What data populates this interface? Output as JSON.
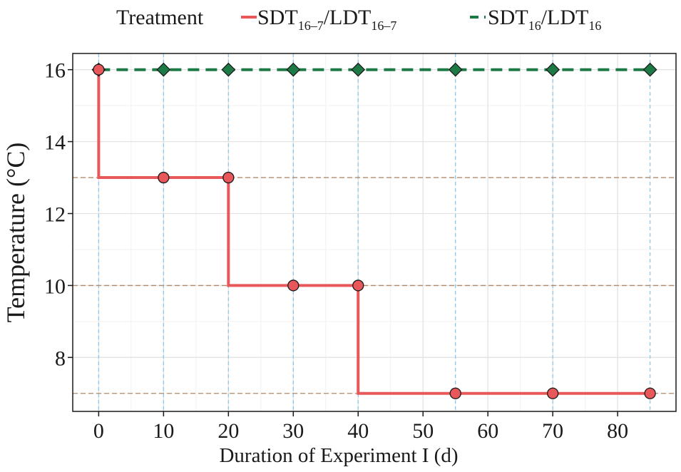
{
  "chart_data": {
    "type": "line",
    "title": "",
    "xlabel": "Duration of Experiment I (d)",
    "ylabel": "Temperature (°C)",
    "xlim": [
      -4,
      89
    ],
    "ylim": [
      6.5,
      16.45
    ],
    "x_ticks": [
      "0",
      "10",
      "20",
      "30",
      "40",
      "50",
      "60",
      "70",
      "80"
    ],
    "y_ticks": [
      "8",
      "10",
      "12",
      "14",
      "16"
    ],
    "legend": {
      "title": "Treatment",
      "position": "top",
      "entries": [
        {
          "main1": "SDT",
          "sub1": "16–7",
          "sep": "/",
          "main2": "LDT",
          "sub2": "16–7"
        },
        {
          "main1": "SDT",
          "sub1": "16",
          "sep": "/",
          "main2": "LDT",
          "sub2": "16"
        }
      ]
    },
    "series": [
      {
        "name": "SDT16–7/LDT16–7",
        "style": "solid step line with circle markers",
        "color": "#e8585a",
        "x": [
          0,
          10,
          20,
          30,
          40,
          55,
          70,
          85
        ],
        "y": [
          16,
          13,
          13,
          10,
          10,
          7,
          7,
          7
        ],
        "step_path": [
          [
            0,
            16
          ],
          [
            0,
            13
          ],
          [
            20,
            13
          ],
          [
            20,
            10
          ],
          [
            40,
            10
          ],
          [
            40,
            7
          ],
          [
            85,
            7
          ]
        ]
      },
      {
        "name": "SDT16/LDT16",
        "style": "dashed line with diamond markers",
        "color": "#1e7a45",
        "x": [
          0,
          10,
          20,
          30,
          40,
          55,
          70,
          85
        ],
        "y": [
          16,
          16,
          16,
          16,
          16,
          16,
          16,
          16
        ]
      }
    ],
    "reference_lines": {
      "vertical_x": [
        0,
        10,
        20,
        30,
        40,
        55,
        70,
        85
      ],
      "vertical_color": "#8ec7ee",
      "horizontal_y": [
        13,
        10,
        7
      ],
      "horizontal_color": "#b08a6a"
    },
    "grid": true
  }
}
